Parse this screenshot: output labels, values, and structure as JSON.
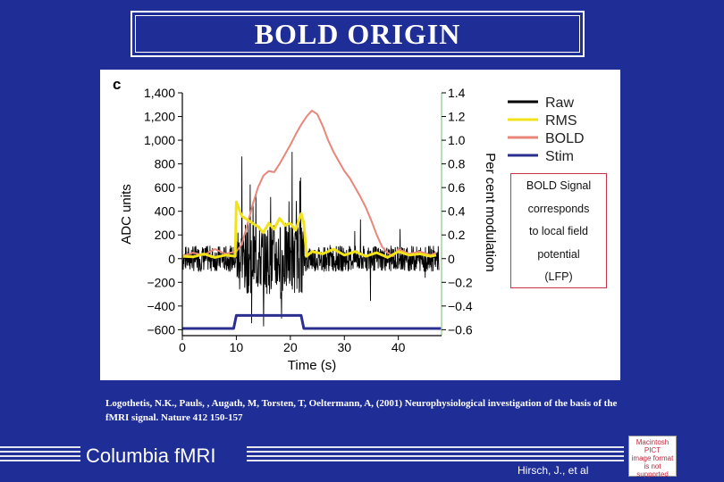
{
  "slide": {
    "title": "BOLD ORIGIN",
    "annotation_lines": [
      "BOLD Signal",
      "corresponds",
      "to local field",
      "potential",
      "(LFP)"
    ],
    "citation": "Logothetis, N.K., Pauls, , Augath, M, Torsten, T, Oeltermann, A, (2001) Neurophysiological investigation of the basis of the fMRI signal.  Nature 412 150-157",
    "brand": "Columbia  fMRI",
    "author": "Hirsch, J., et al",
    "pict_placeholder_lines": [
      "Macintosh PICT",
      "image format",
      "is not supported"
    ]
  },
  "colors": {
    "background": "#1f2e96",
    "raw": "#000000",
    "rms": "#f2e21a",
    "bold": "#e8867a",
    "stim": "#2b2f8f",
    "right_axis": "#9fd39f"
  },
  "chart_data": {
    "type": "line",
    "panel_label": "c",
    "xlabel": "Time (s)",
    "ylabel": "ADC units",
    "ylabel_right": "Per cent modulation",
    "xlim": [
      0,
      48
    ],
    "ylim": [
      -650,
      1400
    ],
    "ylim_right": [
      -0.65,
      1.4
    ],
    "x_ticks": [
      0,
      10,
      20,
      30,
      40
    ],
    "y_ticks": [
      1400,
      1200,
      1000,
      800,
      600,
      400,
      200,
      0,
      -200,
      -400,
      -600
    ],
    "y_tick_labels": [
      "1,400",
      "1,200",
      "1,000",
      "800",
      "600",
      "400",
      "200",
      "0",
      "−200",
      "−400",
      "−600"
    ],
    "y_ticks_right": [
      1.4,
      1.2,
      1.0,
      0.8,
      0.6,
      0.4,
      0.2,
      0,
      -0.2,
      -0.4,
      -0.6
    ],
    "y_tick_labels_right": [
      "1.4",
      "1.2",
      "1.0",
      "0.8",
      "0.6",
      "0.4",
      "0.2",
      "0",
      "−0.2",
      "−0.4",
      "−0.6"
    ],
    "legend": {
      "position": "top-right",
      "entries": [
        {
          "name": "Raw",
          "color": "#000000"
        },
        {
          "name": "RMS",
          "color": "#f2e21a"
        },
        {
          "name": "BOLD",
          "color": "#e8867a"
        },
        {
          "name": "Stim",
          "color": "#2b2f8f"
        }
      ]
    },
    "series": [
      {
        "name": "BOLD",
        "axis": "right",
        "x": [
          0,
          2,
          4,
          6,
          8,
          10,
          11,
          12,
          13,
          14,
          15,
          16,
          17,
          18,
          19,
          20,
          21,
          22,
          23,
          24,
          25,
          26,
          27,
          28,
          29,
          30,
          31,
          32,
          33,
          34,
          35,
          36,
          37,
          38,
          39,
          40,
          42,
          44,
          46,
          47
        ],
        "values": [
          0.02,
          0.05,
          0.03,
          0.08,
          0.04,
          0.06,
          0.12,
          0.28,
          0.45,
          0.6,
          0.7,
          0.74,
          0.73,
          0.8,
          0.88,
          0.96,
          1.05,
          1.13,
          1.2,
          1.25,
          1.22,
          1.12,
          1.0,
          0.9,
          0.82,
          0.74,
          0.68,
          0.6,
          0.52,
          0.43,
          0.32,
          0.2,
          0.1,
          0.05,
          0.02,
          0.08,
          0.04,
          0.06,
          0.03,
          0.05
        ]
      },
      {
        "name": "RMS",
        "axis": "left",
        "x": [
          0,
          2,
          4,
          6,
          8,
          9.8,
          10,
          11,
          12,
          13,
          14,
          15,
          16,
          17,
          18,
          19,
          20,
          21,
          22,
          22.5,
          23,
          24,
          26,
          28,
          30,
          32,
          34,
          36,
          38,
          40,
          42,
          44,
          46,
          47
        ],
        "values": [
          20,
          15,
          40,
          10,
          30,
          20,
          480,
          360,
          330,
          300,
          270,
          220,
          300,
          250,
          340,
          280,
          300,
          240,
          380,
          300,
          20,
          60,
          40,
          80,
          30,
          60,
          20,
          50,
          10,
          60,
          30,
          40,
          20,
          30
        ]
      },
      {
        "name": "Stim",
        "axis": "left",
        "x": [
          0,
          9.5,
          10,
          22,
          22.5,
          48
        ],
        "values": [
          -590,
          -590,
          -480,
          -480,
          -590,
          -590
        ]
      }
    ],
    "raw_envelope": {
      "name": "Raw",
      "baseline_amplitude": 110,
      "stim_amplitude": 300,
      "stim_onset": 10,
      "stim_offset": 22.5
    }
  }
}
